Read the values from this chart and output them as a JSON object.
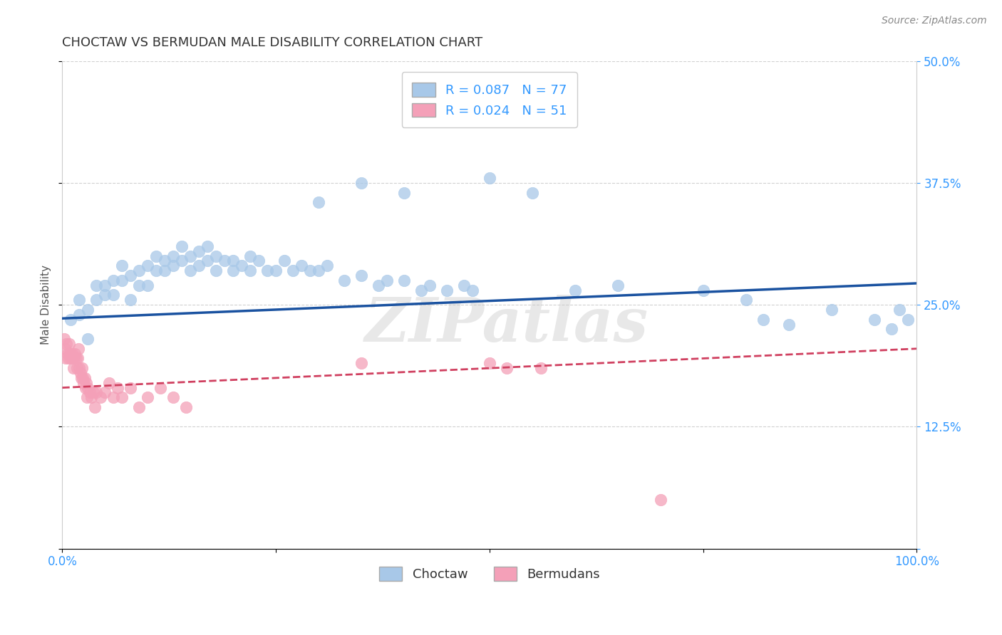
{
  "title": "CHOCTAW VS BERMUDAN MALE DISABILITY CORRELATION CHART",
  "source": "Source: ZipAtlas.com",
  "ylabel": "Male Disability",
  "xlim": [
    0.0,
    1.0
  ],
  "ylim": [
    0.0,
    0.5
  ],
  "yticks": [
    0.0,
    0.125,
    0.25,
    0.375,
    0.5
  ],
  "ytick_labels_left": [
    "",
    "",
    "",
    "",
    ""
  ],
  "ytick_labels_right": [
    "",
    "12.5%",
    "25.0%",
    "37.5%",
    "50.0%"
  ],
  "xticks": [
    0.0,
    0.25,
    0.5,
    0.75,
    1.0
  ],
  "xtick_labels": [
    "0.0%",
    "",
    "",
    "",
    "100.0%"
  ],
  "choctaw_R": 0.087,
  "choctaw_N": 77,
  "bermudan_R": 0.024,
  "bermudan_N": 51,
  "choctaw_color": "#a8c8e8",
  "bermudan_color": "#f4a0b8",
  "trendline_choctaw_color": "#1a52a0",
  "trendline_bermudan_color": "#d04060",
  "watermark": "ZIPatlas",
  "choctaw_x": [
    0.01,
    0.02,
    0.02,
    0.03,
    0.03,
    0.04,
    0.04,
    0.05,
    0.05,
    0.06,
    0.06,
    0.07,
    0.07,
    0.08,
    0.08,
    0.09,
    0.09,
    0.1,
    0.1,
    0.11,
    0.11,
    0.12,
    0.12,
    0.13,
    0.13,
    0.14,
    0.14,
    0.15,
    0.15,
    0.16,
    0.16,
    0.17,
    0.17,
    0.18,
    0.18,
    0.19,
    0.2,
    0.2,
    0.21,
    0.22,
    0.22,
    0.23,
    0.24,
    0.25,
    0.26,
    0.27,
    0.28,
    0.29,
    0.3,
    0.31,
    0.33,
    0.35,
    0.37,
    0.38,
    0.4,
    0.42,
    0.43,
    0.45,
    0.47,
    0.48,
    0.3,
    0.35,
    0.4,
    0.47,
    0.5,
    0.55,
    0.6,
    0.65,
    0.75,
    0.8,
    0.82,
    0.85,
    0.9,
    0.95,
    0.97,
    0.98,
    0.99
  ],
  "choctaw_y": [
    0.235,
    0.24,
    0.255,
    0.215,
    0.245,
    0.255,
    0.27,
    0.26,
    0.27,
    0.275,
    0.26,
    0.275,
    0.29,
    0.255,
    0.28,
    0.27,
    0.285,
    0.27,
    0.29,
    0.285,
    0.3,
    0.285,
    0.295,
    0.29,
    0.3,
    0.295,
    0.31,
    0.285,
    0.3,
    0.29,
    0.305,
    0.295,
    0.31,
    0.285,
    0.3,
    0.295,
    0.285,
    0.295,
    0.29,
    0.3,
    0.285,
    0.295,
    0.285,
    0.285,
    0.295,
    0.285,
    0.29,
    0.285,
    0.285,
    0.29,
    0.275,
    0.28,
    0.27,
    0.275,
    0.275,
    0.265,
    0.27,
    0.265,
    0.27,
    0.265,
    0.355,
    0.375,
    0.365,
    0.455,
    0.38,
    0.365,
    0.265,
    0.27,
    0.265,
    0.255,
    0.235,
    0.23,
    0.245,
    0.235,
    0.225,
    0.245,
    0.235
  ],
  "bermudan_x": [
    0.002,
    0.003,
    0.004,
    0.005,
    0.006,
    0.007,
    0.008,
    0.009,
    0.01,
    0.011,
    0.012,
    0.013,
    0.014,
    0.015,
    0.016,
    0.017,
    0.018,
    0.019,
    0.02,
    0.021,
    0.022,
    0.023,
    0.024,
    0.025,
    0.026,
    0.027,
    0.028,
    0.029,
    0.03,
    0.032,
    0.034,
    0.036,
    0.038,
    0.04,
    0.045,
    0.05,
    0.055,
    0.06,
    0.065,
    0.07,
    0.08,
    0.09,
    0.1,
    0.115,
    0.13,
    0.145,
    0.35,
    0.5,
    0.52,
    0.56,
    0.7
  ],
  "bermudan_y": [
    0.215,
    0.205,
    0.195,
    0.21,
    0.2,
    0.195,
    0.21,
    0.2,
    0.195,
    0.2,
    0.195,
    0.185,
    0.195,
    0.2,
    0.195,
    0.185,
    0.195,
    0.205,
    0.185,
    0.18,
    0.175,
    0.185,
    0.175,
    0.17,
    0.175,
    0.165,
    0.17,
    0.155,
    0.165,
    0.16,
    0.155,
    0.16,
    0.145,
    0.16,
    0.155,
    0.16,
    0.17,
    0.155,
    0.165,
    0.155,
    0.165,
    0.145,
    0.155,
    0.165,
    0.155,
    0.145,
    0.19,
    0.19,
    0.185,
    0.185,
    0.05
  ],
  "legend_color": "#3399ff",
  "axis_tick_color": "#3399ff",
  "grid_color": "#cccccc"
}
